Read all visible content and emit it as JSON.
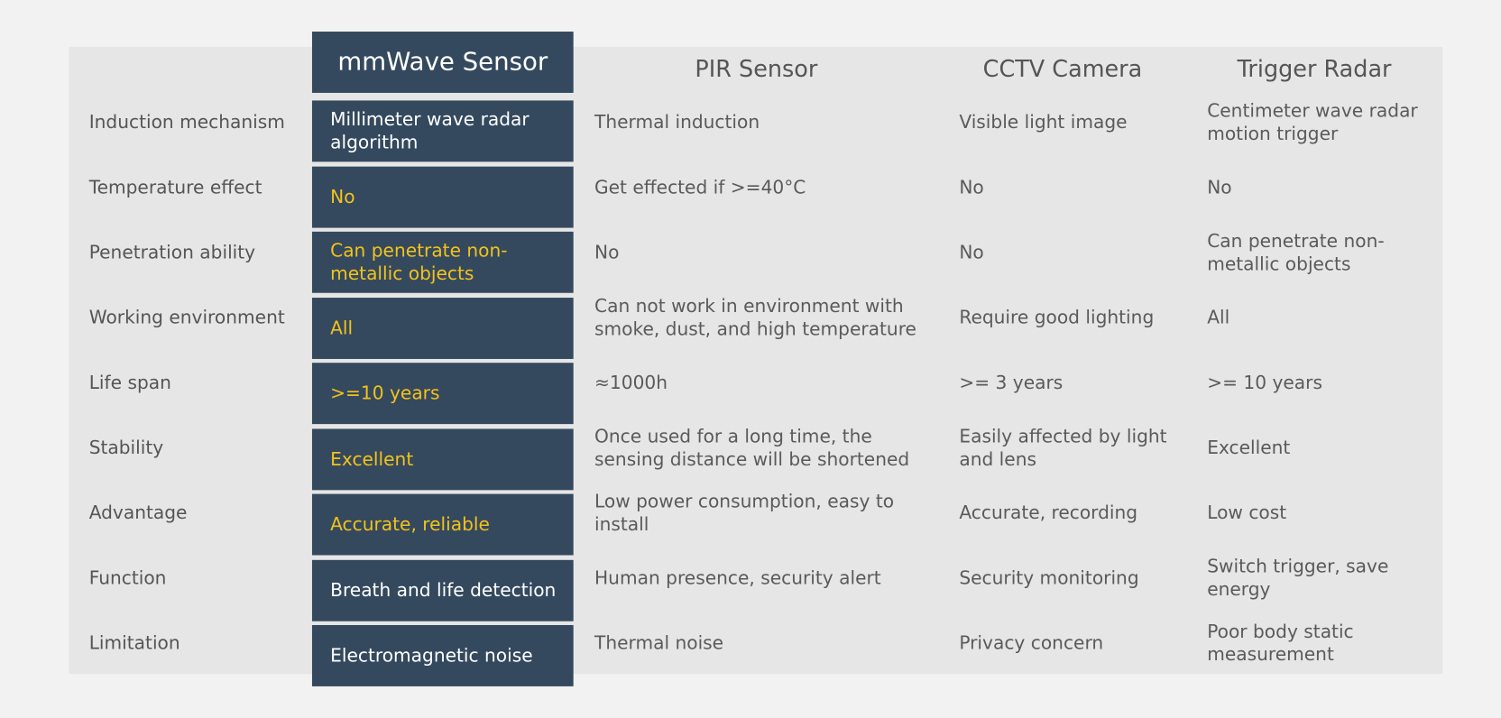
{
  "table": {
    "headers": [
      "mmWave Sensor",
      "PIR Sensor",
      "CCTV Camera",
      "Trigger Radar"
    ],
    "rows": [
      {
        "label": "Induction mechanism",
        "cells": [
          "Millimeter wave radar algorithm",
          "Thermal induction",
          "Visible light image",
          "Centimeter wave radar motion trigger"
        ]
      },
      {
        "label": "Temperature effect",
        "cells": [
          "No",
          "Get effected if >=40°C",
          "No",
          "No"
        ]
      },
      {
        "label": "Penetration ability",
        "cells": [
          "Can penetrate non-metallic objects",
          "No",
          "No",
          "Can penetrate non-metallic objects"
        ]
      },
      {
        "label": "Working environment",
        "cells": [
          "All",
          "Can not work in environment with smoke, dust, and high temperature",
          "Require good lighting",
          "All"
        ]
      },
      {
        "label": "Life span",
        "cells": [
          ">=10 years",
          "≈1000h",
          ">= 3 years",
          ">= 10 years"
        ]
      },
      {
        "label": "Stability",
        "cells": [
          "Excellent",
          "Once used for a long time, the sensing distance will be shortened",
          "Easily affected by light and lens",
          "Excellent"
        ]
      },
      {
        "label": "Advantage",
        "cells": [
          "Accurate, reliable",
          "Low power consumption, easy to install",
          "Accurate, recording",
          "Low cost"
        ]
      },
      {
        "label": "Function",
        "cells": [
          "Breath and life detection",
          "Human presence, security alert",
          "Security monitoring",
          "Switch trigger, save energy"
        ]
      },
      {
        "label": "Limitation",
        "cells": [
          "Electromagnetic noise",
          "Thermal noise",
          "Privacy concern",
          "Poor body static measurement"
        ]
      }
    ]
  }
}
